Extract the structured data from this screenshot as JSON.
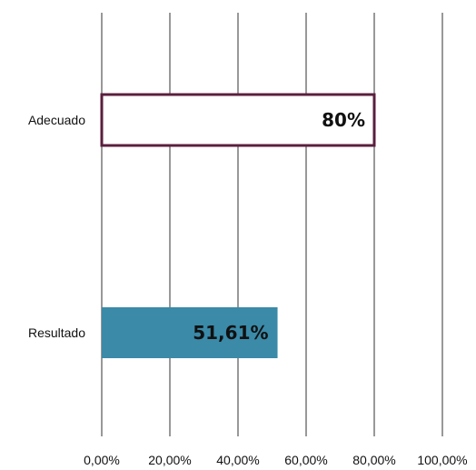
{
  "chart_data": {
    "type": "bar",
    "orientation": "horizontal",
    "categories": [
      "Adecuado",
      "Resultado"
    ],
    "values": [
      80,
      51.61
    ],
    "data_labels": [
      "80%",
      "51,61%"
    ],
    "xlim": [
      0,
      100
    ],
    "x_ticks": [
      0,
      20,
      40,
      60,
      80,
      100
    ],
    "x_tick_labels": [
      "0,00%",
      "20,00%",
      "40,00%",
      "60,00%",
      "80,00%",
      "100,00%"
    ],
    "grid": "vertical",
    "legend": "none",
    "styles": [
      {
        "fill": "#ffffff",
        "stroke": "#5a1f3e"
      },
      {
        "fill": "#3a8aa8",
        "stroke": "none"
      }
    ]
  }
}
